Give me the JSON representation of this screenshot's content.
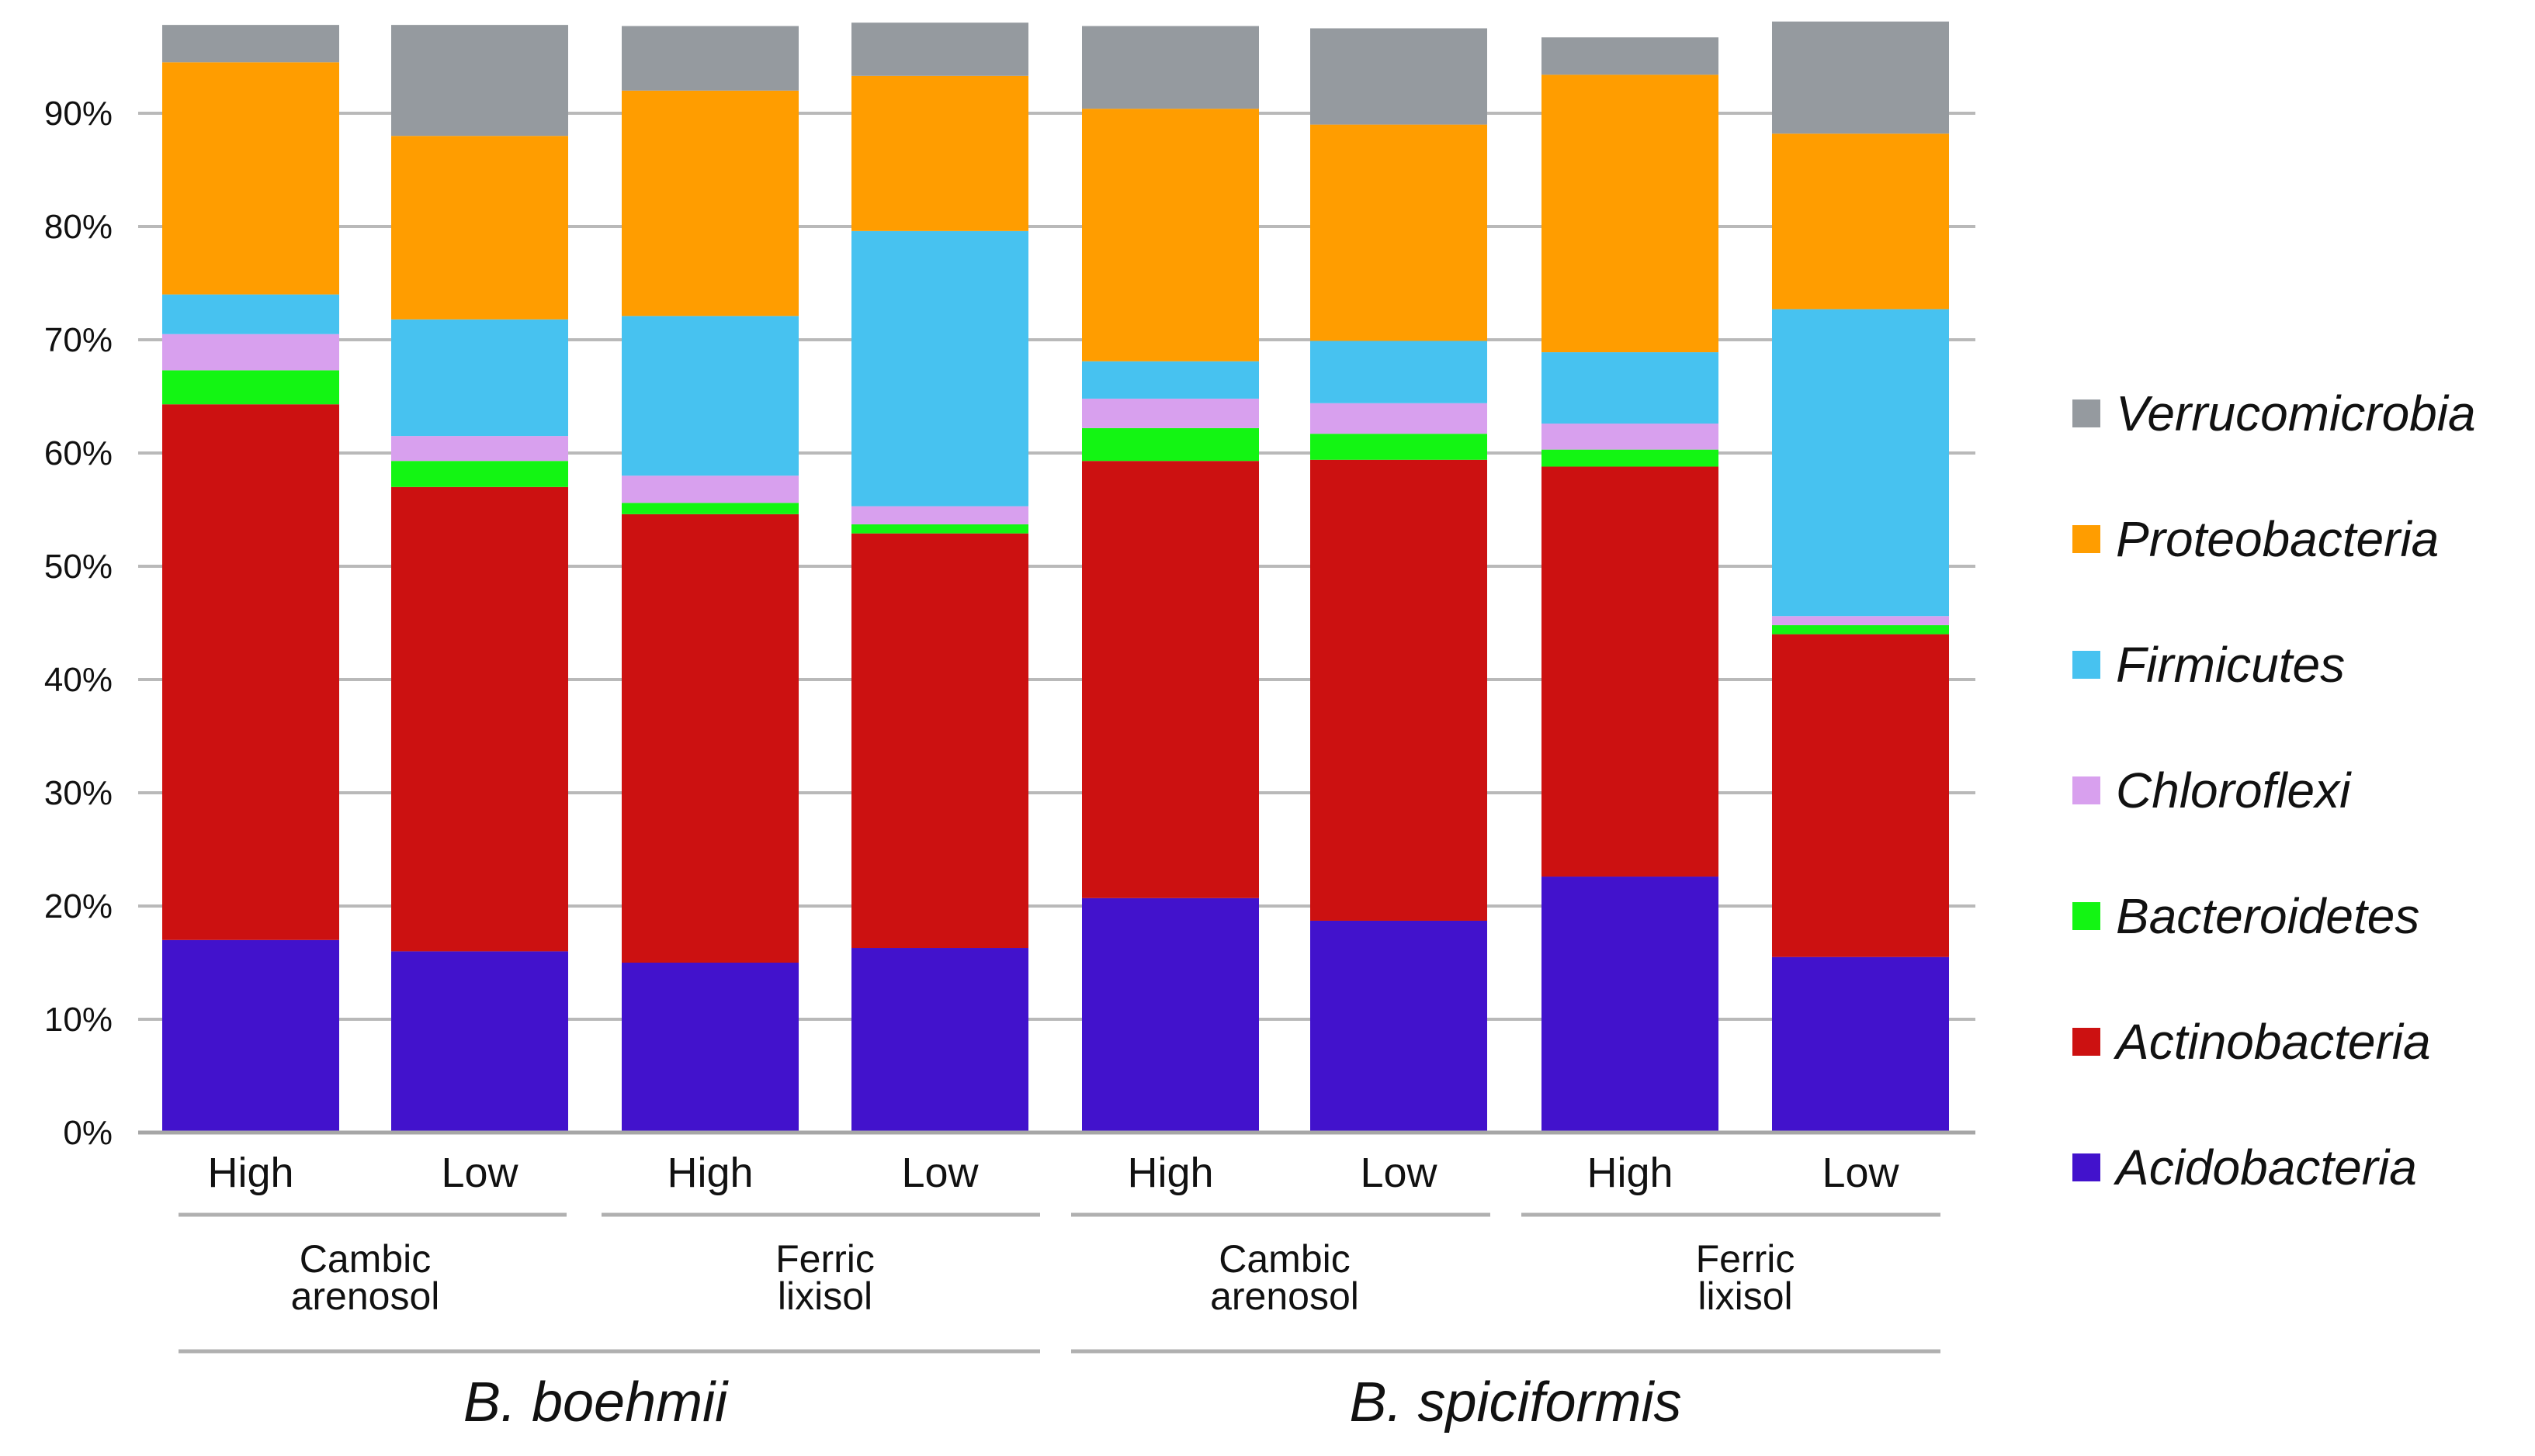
{
  "chart_data": {
    "type": "bar",
    "stacked": true,
    "title": "",
    "xlabel": "",
    "ylabel": "",
    "ylim": [
      0,
      100
    ],
    "yticks": [
      0,
      10,
      20,
      30,
      40,
      50,
      60,
      70,
      80,
      90
    ],
    "ytick_labels": [
      "0%",
      "10%",
      "20%",
      "30%",
      "40%",
      "50%",
      "60%",
      "70%",
      "80%",
      "90%"
    ],
    "categories": [
      "High",
      "Low",
      "High",
      "Low",
      "High",
      "Low",
      "High",
      "Low"
    ],
    "soil_groups": [
      {
        "line1": "Cambic",
        "line2": "arenosol",
        "bars": [
          0,
          1
        ]
      },
      {
        "line1": "Ferric",
        "line2": "lixisol",
        "bars": [
          2,
          3
        ]
      },
      {
        "line1": "Cambic",
        "line2": "arenosol",
        "bars": [
          4,
          5
        ]
      },
      {
        "line1": "Ferric",
        "line2": "lixisol",
        "bars": [
          6,
          7
        ]
      }
    ],
    "species_groups": [
      {
        "name": "B. boehmii",
        "bars": [
          0,
          3
        ]
      },
      {
        "name": "B. spiciformis",
        "bars": [
          4,
          7
        ]
      }
    ],
    "series": [
      {
        "name": "Acidobacteria",
        "color": "#4212cc",
        "values": [
          17.0,
          16.0,
          15.0,
          16.3,
          20.7,
          18.7,
          22.6,
          15.5
        ]
      },
      {
        "name": "Actinobacteria",
        "color": "#cc1111",
        "values": [
          47.3,
          41.0,
          39.6,
          36.6,
          38.6,
          40.7,
          36.2,
          28.5
        ]
      },
      {
        "name": "Bacteroidetes",
        "color": "#13f513",
        "values": [
          3.0,
          2.3,
          1.0,
          0.8,
          2.9,
          2.3,
          1.5,
          0.8
        ]
      },
      {
        "name": "Chloroflexi",
        "color": "#d8a0ee",
        "values": [
          3.2,
          2.2,
          2.4,
          1.6,
          2.6,
          2.7,
          2.3,
          0.8
        ]
      },
      {
        "name": "Firmicutes",
        "color": "#47c2f0",
        "values": [
          3.5,
          10.3,
          14.1,
          24.3,
          3.3,
          5.5,
          6.3,
          27.1
        ]
      },
      {
        "name": "Proteobacteria",
        "color": "#ff9d00",
        "values": [
          20.5,
          16.2,
          19.9,
          13.7,
          22.3,
          19.1,
          24.5,
          15.5
        ]
      },
      {
        "name": "Verrucomicrobia",
        "color": "#959a9f",
        "values": [
          3.3,
          9.8,
          5.7,
          4.7,
          7.3,
          8.5,
          3.3,
          9.9
        ]
      }
    ],
    "legend_order": [
      "Verrucomicrobia",
      "Proteobacteria",
      "Firmicutes",
      "Chloroflexi",
      "Bacteroidetes",
      "Actinobacteria",
      "Acidobacteria"
    ],
    "legend_position": "right",
    "grid": true
  }
}
